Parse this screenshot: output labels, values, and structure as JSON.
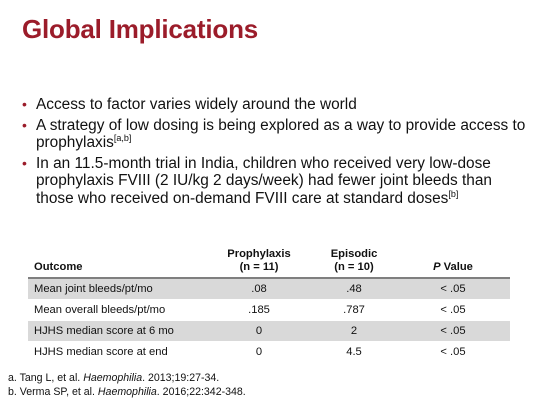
{
  "title": "Global Implications",
  "bullets": [
    {
      "text": "Access to factor varies widely around the world",
      "sup": ""
    },
    {
      "text": "A strategy of low dosing is being explored as a way to provide access to prophylaxis",
      "sup": "[a,b]"
    },
    {
      "text": "In an 11.5-month trial in India, children who received very low-dose prophylaxis FVIII (2 IU/kg 2 days/week) had fewer joint bleeds than those who received on-demand FVIII care at standard doses",
      "sup": "[b]"
    }
  ],
  "table": {
    "headers": {
      "outcome": "Outcome",
      "prophylaxis": "Prophylaxis",
      "prophylaxis_n": "(n = 11)",
      "episodic": "Episodic",
      "episodic_n": "(n = 10)",
      "p_italic": "P",
      "p_rest": " Value"
    },
    "rows": [
      {
        "outcome": "Mean joint bleeds/pt/mo",
        "prophylaxis": ".08",
        "episodic": ".48",
        "p": "< .05"
      },
      {
        "outcome": "Mean overall bleeds/pt/mo",
        "prophylaxis": ".185",
        "episodic": ".787",
        "p": "< .05"
      },
      {
        "outcome": "HJHS median score at 6 mo",
        "prophylaxis": "0",
        "episodic": "2",
        "p": "< .05"
      },
      {
        "outcome": "HJHS median score at end",
        "prophylaxis": "0",
        "episodic": "4.5",
        "p": "< .05"
      }
    ]
  },
  "references": [
    {
      "prefix": "a. Tang L, et al. ",
      "journal": "Haemophilia",
      "suffix": ". 2013;19:27-34."
    },
    {
      "prefix": "b. Verma SP, et al. ",
      "journal": "Haemophilia",
      "suffix": ". 2016;22:342-348."
    }
  ],
  "colors": {
    "accent": "#9b1c2a",
    "row_shade": "#d9d9d9",
    "rule": "#7f7f7f"
  }
}
